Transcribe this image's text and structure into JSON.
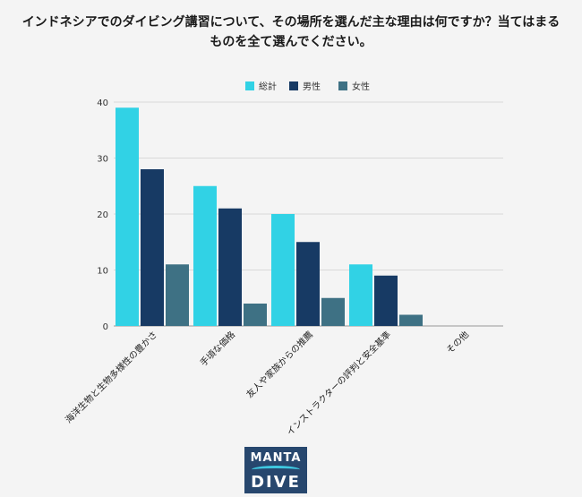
{
  "title_lines": [
    "インドネシアでのダイビング講習について、その場所を選んだ主な理由は何ですか？当てはまる",
    "ものを全て選んでください。"
  ],
  "logo": {
    "line1": "MANTA",
    "line2": "DIVE"
  },
  "colors": {
    "total": "#31d2e5",
    "male": "#173a64",
    "female": "#3e7184",
    "grid": "#d9d9d9",
    "axis": "#999999"
  },
  "chart_data": {
    "type": "bar",
    "title": "インドネシアでのダイビング講習について、その場所を選んだ主な理由は何ですか？当てはまるものを全て選んでください。",
    "categories": [
      "海洋生物と生物多様性の豊かさ",
      "手頃な価格",
      "友人や家族からの推薦",
      "インストラクターの評判と安全基準",
      "その他"
    ],
    "series": [
      {
        "name": "総計",
        "values": [
          39,
          25,
          20,
          11,
          0
        ]
      },
      {
        "name": "男性",
        "values": [
          28,
          21,
          15,
          9,
          0
        ]
      },
      {
        "name": "女性",
        "values": [
          11,
          4,
          5,
          2,
          0
        ]
      }
    ],
    "ylim": [
      0,
      40
    ],
    "yticks": [
      0,
      10,
      20,
      30,
      40
    ],
    "grid": true,
    "legend_position": "top-center",
    "xlabel": "",
    "ylabel": ""
  }
}
